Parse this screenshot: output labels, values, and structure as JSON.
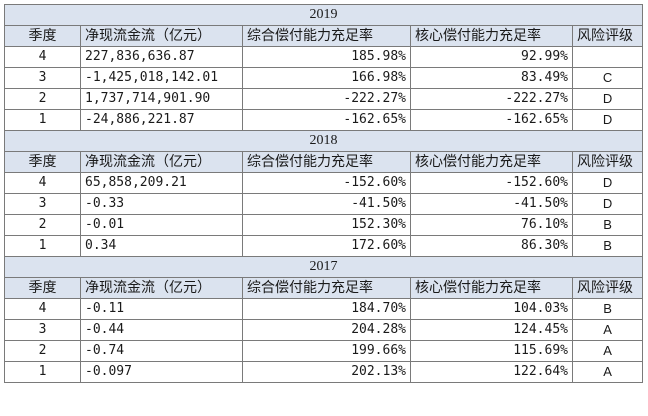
{
  "columns": [
    "季度",
    "净现流金流（亿元）",
    "综合偿付能力充足率",
    "核心偿付能力充足率",
    "风险评级"
  ],
  "sections": [
    {
      "year": "2019",
      "rows": [
        {
          "q": "4",
          "cash": "227,836,636.87",
          "comp": "185.98%",
          "core": "92.99%",
          "rating": ""
        },
        {
          "q": "3",
          "cash": "-1,425,018,142.01",
          "comp": "166.98%",
          "core": "83.49%",
          "rating": "C"
        },
        {
          "q": "2",
          "cash": "1,737,714,901.90",
          "comp": "-222.27%",
          "core": "-222.27%",
          "rating": "D"
        },
        {
          "q": "1",
          "cash": "-24,886,221.87",
          "comp": "-162.65%",
          "core": "-162.65%",
          "rating": "D"
        }
      ]
    },
    {
      "year": "2018",
      "rows": [
        {
          "q": "4",
          "cash": "65,858,209.21",
          "comp": "-152.60%",
          "core": "-152.60%",
          "rating": "D"
        },
        {
          "q": "3",
          "cash": "-0.33",
          "comp": "-41.50%",
          "core": "-41.50%",
          "rating": "D"
        },
        {
          "q": "2",
          "cash": "-0.01",
          "comp": "152.30%",
          "core": "76.10%",
          "rating": "B"
        },
        {
          "q": "1",
          "cash": "0.34",
          "comp": "172.60%",
          "core": "86.30%",
          "rating": "B"
        }
      ]
    },
    {
      "year": "2017",
      "rows": [
        {
          "q": "4",
          "cash": "-0.11",
          "comp": "184.70%",
          "core": "104.03%",
          "rating": "B"
        },
        {
          "q": "3",
          "cash": "-0.44",
          "comp": "204.28%",
          "core": "124.45%",
          "rating": "A"
        },
        {
          "q": "2",
          "cash": "-0.74",
          "comp": "199.66%",
          "core": "115.69%",
          "rating": "A"
        },
        {
          "q": "1",
          "cash": "-0.097",
          "comp": "202.13%",
          "core": "122.64%",
          "rating": "A"
        }
      ]
    }
  ]
}
